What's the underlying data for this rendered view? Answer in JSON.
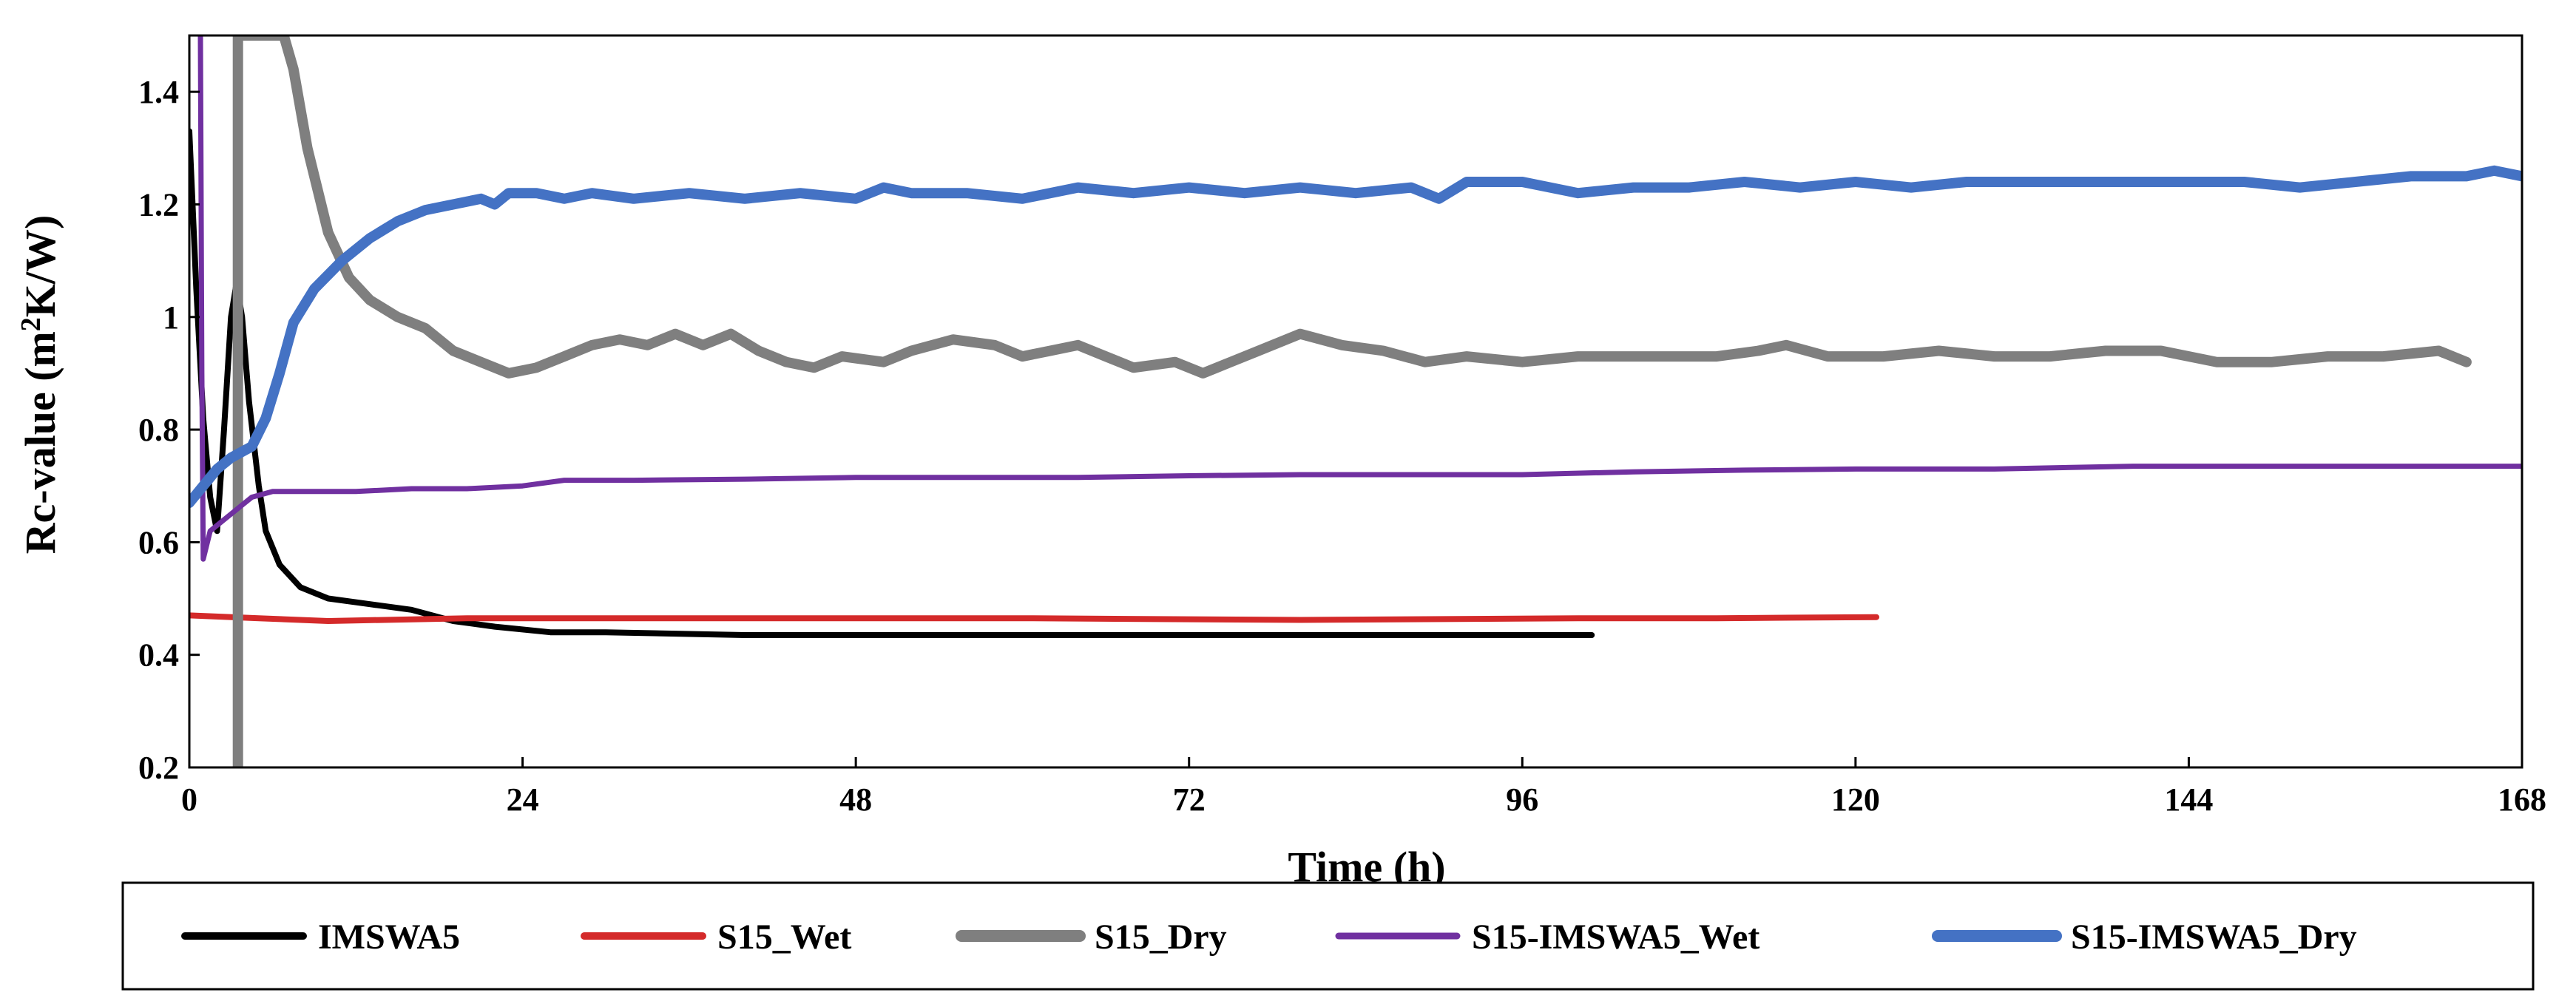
{
  "chart_data": {
    "type": "line",
    "title": "",
    "xlabel": "Time (h)",
    "ylabel_main": "Rc-value (m",
    "ylabel_sup": "2",
    "ylabel_tail": "K/W)",
    "xlim": [
      0,
      168
    ],
    "ylim": [
      0.2,
      1.5
    ],
    "xticks": [
      0,
      24,
      48,
      72,
      96,
      120,
      144,
      168
    ],
    "yticks": [
      0.2,
      0.4,
      0.6,
      0.8,
      1,
      1.2,
      1.4
    ],
    "ytick_labels": [
      "0.2",
      "0.4",
      "0.6",
      "0.8",
      "1",
      "1.2",
      "1.4"
    ],
    "grid": false,
    "legend_position": "bottom",
    "series": [
      {
        "name": "IMSWA5",
        "color": "#000000",
        "points": [
          [
            0,
            1.33
          ],
          [
            0.5,
            1.05
          ],
          [
            1,
            0.82
          ],
          [
            1.5,
            0.68
          ],
          [
            2,
            0.62
          ],
          [
            2.5,
            0.8
          ],
          [
            3,
            1.0
          ],
          [
            3.4,
            1.06
          ],
          [
            3.8,
            1.0
          ],
          [
            4.3,
            0.85
          ],
          [
            5,
            0.7
          ],
          [
            5.5,
            0.62
          ],
          [
            6.5,
            0.56
          ],
          [
            8,
            0.52
          ],
          [
            10,
            0.5
          ],
          [
            13,
            0.49
          ],
          [
            16,
            0.48
          ],
          [
            19,
            0.46
          ],
          [
            22,
            0.45
          ],
          [
            26,
            0.44
          ],
          [
            30,
            0.44
          ],
          [
            40,
            0.435
          ],
          [
            60,
            0.435
          ],
          [
            80,
            0.435
          ],
          [
            101,
            0.435
          ]
        ]
      },
      {
        "name": "S15_Wet",
        "color": "#d42a2a",
        "points": [
          [
            0,
            0.47
          ],
          [
            5,
            0.465
          ],
          [
            10,
            0.46
          ],
          [
            20,
            0.465
          ],
          [
            40,
            0.465
          ],
          [
            60,
            0.465
          ],
          [
            80,
            0.462
          ],
          [
            100,
            0.465
          ],
          [
            110,
            0.465
          ],
          [
            121.5,
            0.467
          ]
        ]
      },
      {
        "name": "S15_Dry",
        "color": "#7f7f7f",
        "points": [
          [
            3.5,
            0.2
          ],
          [
            3.5,
            1.5
          ],
          [
            6.8,
            1.5
          ],
          [
            7.5,
            1.44
          ],
          [
            8.5,
            1.3
          ],
          [
            10,
            1.15
          ],
          [
            11.5,
            1.07
          ],
          [
            13,
            1.03
          ],
          [
            15,
            1.0
          ],
          [
            17,
            0.98
          ],
          [
            19,
            0.94
          ],
          [
            21,
            0.92
          ],
          [
            23,
            0.9
          ],
          [
            25,
            0.91
          ],
          [
            27,
            0.93
          ],
          [
            29,
            0.95
          ],
          [
            31,
            0.96
          ],
          [
            33,
            0.95
          ],
          [
            35,
            0.97
          ],
          [
            37,
            0.95
          ],
          [
            39,
            0.97
          ],
          [
            41,
            0.94
          ],
          [
            43,
            0.92
          ],
          [
            45,
            0.91
          ],
          [
            47,
            0.93
          ],
          [
            50,
            0.92
          ],
          [
            52,
            0.94
          ],
          [
            55,
            0.96
          ],
          [
            58,
            0.95
          ],
          [
            60,
            0.93
          ],
          [
            62,
            0.94
          ],
          [
            64,
            0.95
          ],
          [
            66,
            0.93
          ],
          [
            68,
            0.91
          ],
          [
            71,
            0.92
          ],
          [
            73,
            0.9
          ],
          [
            75,
            0.92
          ],
          [
            77,
            0.94
          ],
          [
            80,
            0.97
          ],
          [
            83,
            0.95
          ],
          [
            86,
            0.94
          ],
          [
            89,
            0.92
          ],
          [
            92,
            0.93
          ],
          [
            96,
            0.92
          ],
          [
            100,
            0.93
          ],
          [
            105,
            0.93
          ],
          [
            110,
            0.93
          ],
          [
            113,
            0.94
          ],
          [
            115,
            0.95
          ],
          [
            118,
            0.93
          ],
          [
            122,
            0.93
          ],
          [
            126,
            0.94
          ],
          [
            130,
            0.93
          ],
          [
            134,
            0.93
          ],
          [
            138,
            0.94
          ],
          [
            142,
            0.94
          ],
          [
            146,
            0.92
          ],
          [
            150,
            0.92
          ],
          [
            154,
            0.93
          ],
          [
            158,
            0.93
          ],
          [
            162,
            0.94
          ],
          [
            164,
            0.92
          ]
        ]
      },
      {
        "name": "S15-IMSWA5_Wet",
        "color": "#7030a0",
        "points": [
          [
            0.8,
            1.5
          ],
          [
            0.9,
            0.9
          ],
          [
            1,
            0.57
          ],
          [
            1.5,
            0.62
          ],
          [
            2.5,
            0.64
          ],
          [
            3.5,
            0.66
          ],
          [
            4.5,
            0.68
          ],
          [
            6,
            0.69
          ],
          [
            8,
            0.69
          ],
          [
            12,
            0.69
          ],
          [
            16,
            0.695
          ],
          [
            20,
            0.695
          ],
          [
            24,
            0.7
          ],
          [
            27,
            0.71
          ],
          [
            32,
            0.71
          ],
          [
            40,
            0.712
          ],
          [
            48,
            0.715
          ],
          [
            56,
            0.715
          ],
          [
            64,
            0.715
          ],
          [
            72,
            0.718
          ],
          [
            80,
            0.72
          ],
          [
            88,
            0.72
          ],
          [
            96,
            0.72
          ],
          [
            104,
            0.725
          ],
          [
            112,
            0.728
          ],
          [
            120,
            0.73
          ],
          [
            130,
            0.73
          ],
          [
            140,
            0.735
          ],
          [
            150,
            0.735
          ],
          [
            160,
            0.735
          ],
          [
            168,
            0.735
          ]
        ]
      },
      {
        "name": "S15-IMSWA5_Dry",
        "color": "#4472c4",
        "points": [
          [
            0,
            0.67
          ],
          [
            1,
            0.7
          ],
          [
            2,
            0.73
          ],
          [
            3,
            0.75
          ],
          [
            4.5,
            0.77
          ],
          [
            5.5,
            0.82
          ],
          [
            6.5,
            0.9
          ],
          [
            7.5,
            0.99
          ],
          [
            9,
            1.05
          ],
          [
            11,
            1.1
          ],
          [
            13,
            1.14
          ],
          [
            15,
            1.17
          ],
          [
            17,
            1.19
          ],
          [
            19,
            1.2
          ],
          [
            21,
            1.21
          ],
          [
            22,
            1.2
          ],
          [
            23,
            1.22
          ],
          [
            25,
            1.22
          ],
          [
            27,
            1.21
          ],
          [
            29,
            1.22
          ],
          [
            32,
            1.21
          ],
          [
            36,
            1.22
          ],
          [
            40,
            1.21
          ],
          [
            44,
            1.22
          ],
          [
            48,
            1.21
          ],
          [
            50,
            1.23
          ],
          [
            52,
            1.22
          ],
          [
            56,
            1.22
          ],
          [
            60,
            1.21
          ],
          [
            64,
            1.23
          ],
          [
            68,
            1.22
          ],
          [
            72,
            1.23
          ],
          [
            76,
            1.22
          ],
          [
            80,
            1.23
          ],
          [
            84,
            1.22
          ],
          [
            88,
            1.23
          ],
          [
            90,
            1.21
          ],
          [
            92,
            1.24
          ],
          [
            96,
            1.24
          ],
          [
            100,
            1.22
          ],
          [
            104,
            1.23
          ],
          [
            108,
            1.23
          ],
          [
            112,
            1.24
          ],
          [
            116,
            1.23
          ],
          [
            120,
            1.24
          ],
          [
            124,
            1.23
          ],
          [
            128,
            1.24
          ],
          [
            132,
            1.24
          ],
          [
            136,
            1.24
          ],
          [
            140,
            1.24
          ],
          [
            144,
            1.24
          ],
          [
            148,
            1.24
          ],
          [
            152,
            1.23
          ],
          [
            156,
            1.24
          ],
          [
            160,
            1.25
          ],
          [
            164,
            1.25
          ],
          [
            166,
            1.26
          ],
          [
            168,
            1.25
          ]
        ]
      }
    ]
  }
}
